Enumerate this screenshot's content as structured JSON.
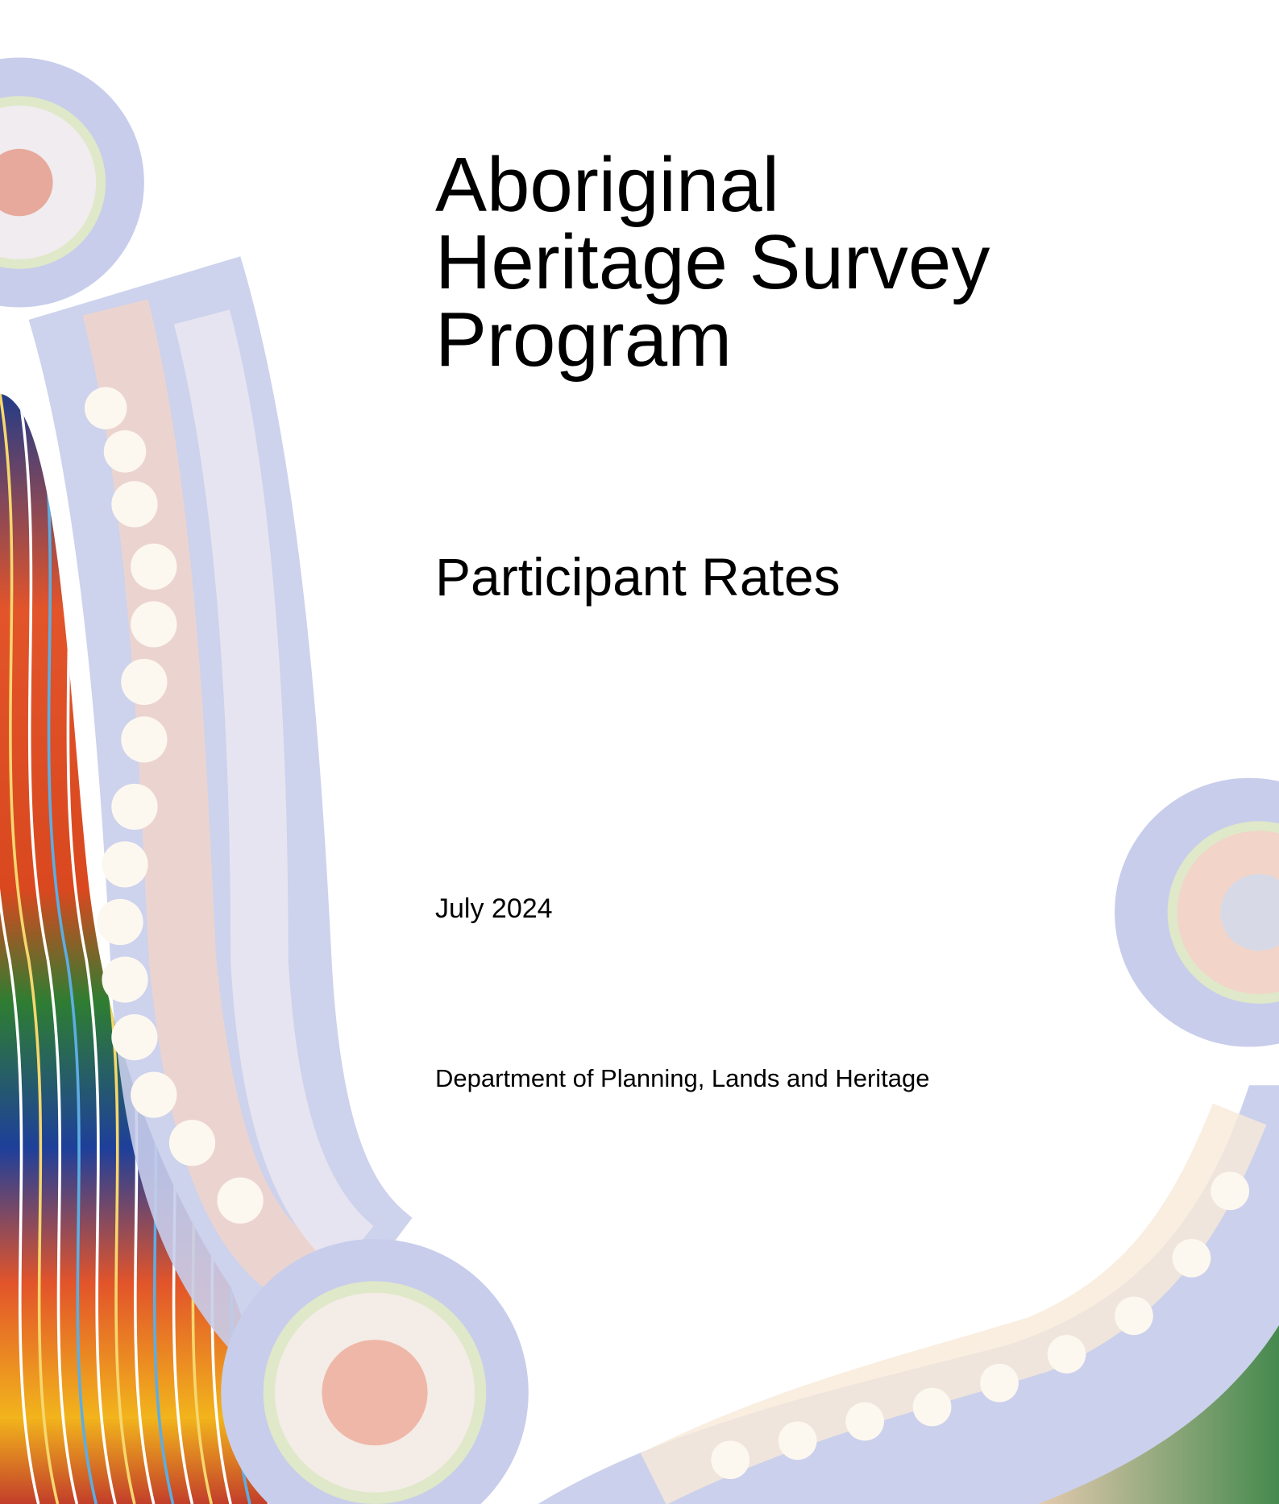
{
  "cover": {
    "title_lines": [
      "Aboriginal",
      "Heritage Survey",
      "Program"
    ],
    "subtitle": "Participant Rates",
    "date": "July 2024",
    "department": "Department of Planning, Lands and Heritage"
  }
}
